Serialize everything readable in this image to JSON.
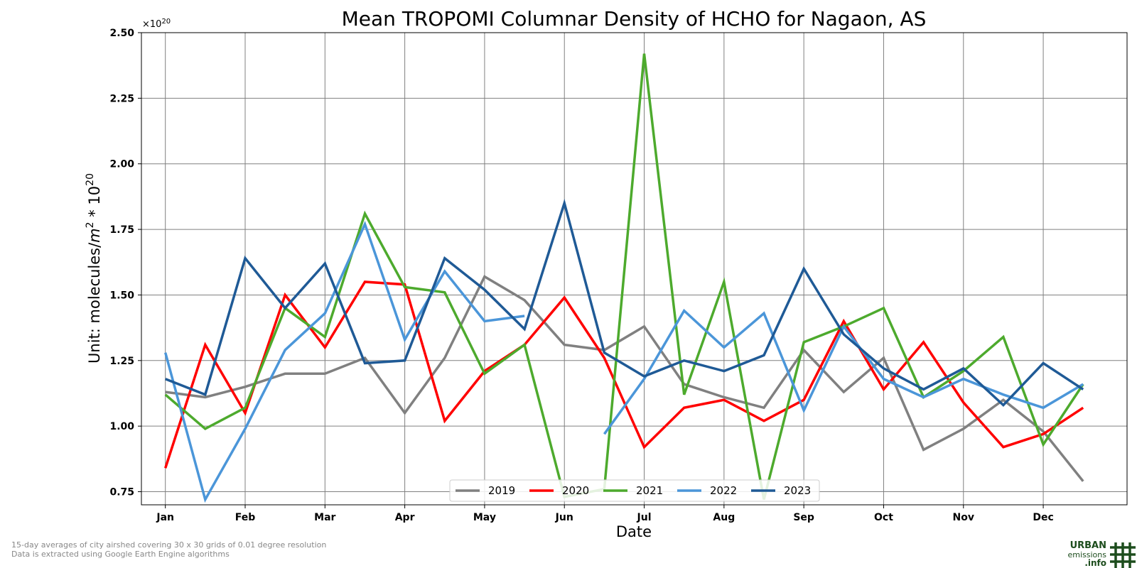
{
  "chart_data": {
    "type": "line",
    "title": "Mean TROPOMI Columnar Density of HCHO for Nagaon, AS",
    "xlabel": "Date",
    "ylabel": "Unit: molecules/",
    "ylabel_unit": "m",
    "ylabel_sq": "2",
    "ylabel_tail": " * 10",
    "ylabel_exp": "20",
    "offset_base": "×10",
    "offset_exp": "20",
    "ylim": [
      0.7,
      2.5
    ],
    "yticks": [
      "0.75",
      "1.00",
      "1.25",
      "1.50",
      "1.75",
      "2.00",
      "2.25",
      "2.50"
    ],
    "ytick_values": [
      0.75,
      1.0,
      1.25,
      1.5,
      1.75,
      2.0,
      2.25,
      2.5
    ],
    "xlim": [
      -0.6,
      24.1
    ],
    "month_ticks": [
      "Jan",
      "Feb",
      "Mar",
      "Apr",
      "May",
      "Jun",
      "Jul",
      "Aug",
      "Sep",
      "Oct",
      "Nov",
      "Dec"
    ],
    "month_tick_positions": [
      0,
      2,
      4,
      6,
      8,
      10,
      12,
      14,
      16,
      18,
      20,
      22
    ],
    "x_note": "x values are 15-day period index: 0 = Jan (first half), 1 = Jan (second half), ... 23 = Dec (second half)",
    "grid": true,
    "legend_position": "bottom-center",
    "series": [
      {
        "name": "2019",
        "color": "#808080",
        "values": [
          1.13,
          1.11,
          1.15,
          1.2,
          1.2,
          1.26,
          1.05,
          1.26,
          1.57,
          1.48,
          1.31,
          1.29,
          1.38,
          1.16,
          1.11,
          1.07,
          1.29,
          1.13,
          1.26,
          0.91,
          0.99,
          1.1,
          0.98,
          0.79
        ]
      },
      {
        "name": "2020",
        "color": "#ff0000",
        "values": [
          0.84,
          1.31,
          1.05,
          1.5,
          1.3,
          1.55,
          1.54,
          1.02,
          1.21,
          1.31,
          1.49,
          1.26,
          0.92,
          1.07,
          1.1,
          1.02,
          1.1,
          1.4,
          1.14,
          1.32,
          1.09,
          0.92,
          0.97,
          1.07
        ]
      },
      {
        "name": "2021",
        "color": "#4daa2d",
        "values": [
          1.12,
          0.99,
          1.07,
          1.45,
          1.34,
          1.81,
          1.53,
          1.51,
          1.2,
          1.31,
          0.73,
          0.76,
          2.42,
          1.12,
          1.55,
          0.72,
          1.32,
          1.38,
          1.45,
          1.11,
          1.21,
          1.34,
          0.93,
          1.16
        ]
      },
      {
        "name": "2022",
        "color": "#4b96d9",
        "values": [
          1.28,
          0.72,
          0.99,
          1.29,
          1.43,
          1.77,
          1.33,
          1.59,
          1.4,
          1.42,
          null,
          0.97,
          1.18,
          1.44,
          1.3,
          1.43,
          1.06,
          1.38,
          1.18,
          1.11,
          1.18,
          1.12,
          1.07,
          1.16
        ]
      },
      {
        "name": "2023",
        "color": "#1f5a96",
        "values": [
          1.18,
          1.12,
          1.64,
          1.45,
          1.62,
          1.24,
          1.25,
          1.64,
          1.52,
          1.37,
          1.85,
          1.28,
          1.19,
          1.25,
          1.21,
          1.27,
          1.6,
          1.35,
          1.22,
          1.14,
          1.22,
          1.08,
          1.24,
          1.14
        ]
      }
    ]
  },
  "footnote": {
    "line1": "15-day averages of city airshed covering 30 x 30 grids of 0.01 degree resolution",
    "line2": "Data is extracted using Google Earth Engine algorithms"
  },
  "brand": {
    "line1": "URBAN",
    "line2": "emissions",
    "line3": ".info",
    "color": "#1d4d1d"
  }
}
